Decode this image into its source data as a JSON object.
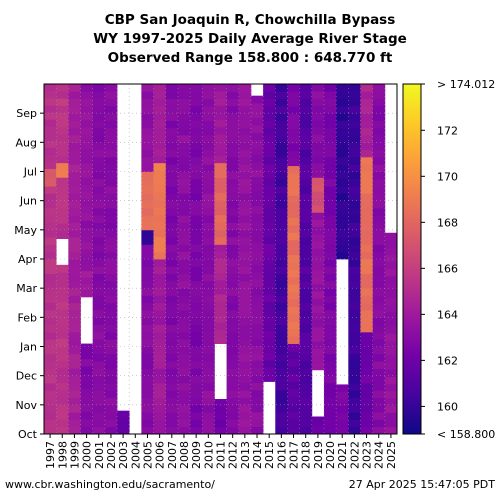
{
  "title_lines": [
    "CBP San Joaquin R, Chowchilla Bypass",
    "WY 1997-2025 Daily Average River Stage",
    "Observed Range 158.800 : 648.770 ft"
  ],
  "footer": {
    "left": "www.cbr.washington.edu/sacramento/",
    "right": "27 Apr 2025 15:47:05 PDT"
  },
  "chart_data": {
    "type": "heatmap",
    "x": [
      "1997",
      "1998",
      "1999",
      "2000",
      "2001",
      "2002",
      "2003",
      "2004",
      "2005",
      "2006",
      "2007",
      "2008",
      "2009",
      "2010",
      "2011",
      "2012",
      "2013",
      "2014",
      "2015",
      "2016",
      "2017",
      "2018",
      "2019",
      "2020",
      "2021",
      "2022",
      "2023",
      "2024",
      "2025"
    ],
    "y": [
      "Oct",
      "Nov",
      "Dec",
      "Jan",
      "Feb",
      "Mar",
      "Apr",
      "May",
      "Jun",
      "Jul",
      "Aug",
      "Sep"
    ],
    "colorbar": {
      "range": [
        158.8,
        174.012
      ],
      "ticks": [
        "160",
        "162",
        "164",
        "166",
        "168",
        "170",
        "172"
      ],
      "tick_values": [
        160,
        162,
        164,
        166,
        168,
        170,
        172
      ],
      "max_label": "> 174.012",
      "min_label": "< 158.800",
      "colors": [
        "#0d0887",
        "#46039f",
        "#7201a8",
        "#9c179e",
        "#bd3786",
        "#d8576b",
        "#ed7953",
        "#fb9f3a",
        "#fdca26",
        "#f0f921"
      ]
    },
    "grid": "dotted",
    "months_from_oct": [
      {
        "year": "1997",
        "base": 165.2,
        "segments": [
          [
            0,
            8.5,
            165.3
          ],
          [
            8.5,
            9.1,
            167.5
          ],
          [
            9.1,
            12,
            165.2
          ]
        ]
      },
      {
        "year": "1998",
        "base": 165.8,
        "segments": [
          [
            0,
            5.8,
            165.4
          ],
          [
            5.8,
            6.7,
            null
          ],
          [
            6.7,
            8.8,
            165.2
          ],
          [
            8.8,
            9.3,
            169.0
          ],
          [
            9.3,
            12,
            165.5
          ]
        ]
      },
      {
        "year": "1999",
        "base": 164.5,
        "segments": [
          [
            0,
            12,
            164.3
          ]
        ]
      },
      {
        "year": "2000",
        "base": 163.5,
        "segments": [
          [
            0,
            3.1,
            162.8
          ],
          [
            3.1,
            4.7,
            null
          ],
          [
            4.7,
            5.6,
            164.2
          ],
          [
            5.6,
            12,
            163.4
          ]
        ]
      },
      {
        "year": "2001",
        "base": 163.0,
        "segments": [
          [
            0,
            12,
            163.0
          ]
        ]
      },
      {
        "year": "2002",
        "base": 163.0,
        "segments": [
          [
            0,
            12,
            163.0
          ]
        ]
      },
      {
        "year": "2003",
        "base": 162.0,
        "segments": [
          [
            0,
            0.8,
            161.8
          ],
          [
            0.8,
            12,
            null
          ]
        ]
      },
      {
        "year": "2004",
        "base": null,
        "segments": [
          [
            0,
            12,
            null
          ]
        ]
      },
      {
        "year": "2005",
        "base": 163.5,
        "segments": [
          [
            0,
            6.5,
            163.0
          ],
          [
            6.5,
            7.0,
            159.5
          ],
          [
            7.0,
            9.0,
            168.5
          ],
          [
            9.0,
            12,
            163.5
          ]
        ]
      },
      {
        "year": "2006",
        "base": 164.5,
        "segments": [
          [
            0,
            6.0,
            164.0
          ],
          [
            6.0,
            9.3,
            169.0
          ],
          [
            9.3,
            12,
            164.5
          ]
        ]
      },
      {
        "year": "2007",
        "base": 163.0,
        "segments": [
          [
            0,
            12,
            162.8
          ]
        ]
      },
      {
        "year": "2008",
        "base": 163.0,
        "segments": [
          [
            0,
            12,
            163.2
          ]
        ]
      },
      {
        "year": "2009",
        "base": 162.5,
        "segments": [
          [
            0,
            12,
            162.6
          ]
        ]
      },
      {
        "year": "2010",
        "base": 163.0,
        "segments": [
          [
            0,
            12,
            163.2
          ]
        ]
      },
      {
        "year": "2011",
        "base": 165.0,
        "segments": [
          [
            0,
            1.2,
            162.0
          ],
          [
            1.2,
            3.1,
            null
          ],
          [
            3.1,
            6.5,
            164.5
          ],
          [
            6.5,
            9.3,
            168.0
          ],
          [
            9.3,
            12,
            164.0
          ]
        ]
      },
      {
        "year": "2012",
        "base": 163.0,
        "segments": [
          [
            0,
            12,
            163.0
          ]
        ]
      },
      {
        "year": "2013",
        "base": 163.5,
        "segments": [
          [
            0,
            12,
            163.5
          ]
        ]
      },
      {
        "year": "2014",
        "base": 163.0,
        "segments": [
          [
            0,
            11.6,
            163.2
          ],
          [
            11.6,
            12,
            null
          ]
        ]
      },
      {
        "year": "2015",
        "base": 161.8,
        "segments": [
          [
            0,
            1.8,
            null
          ],
          [
            1.8,
            12,
            161.8
          ]
        ]
      },
      {
        "year": "2016",
        "base": 160.5,
        "segments": [
          [
            0,
            12,
            160.4
          ]
        ]
      },
      {
        "year": "2017",
        "base": 162.0,
        "segments": [
          [
            0,
            3.1,
            161.5
          ],
          [
            3.1,
            9.2,
            168.5
          ],
          [
            9.2,
            12,
            162.5
          ]
        ]
      },
      {
        "year": "2018",
        "base": 161.0,
        "segments": [
          [
            0,
            12,
            161.0
          ]
        ]
      },
      {
        "year": "2019",
        "base": 163.0,
        "segments": [
          [
            0,
            0.6,
            162.0
          ],
          [
            0.6,
            2.2,
            null
          ],
          [
            2.2,
            7.6,
            163.5
          ],
          [
            7.6,
            8.8,
            167.0
          ],
          [
            8.8,
            12,
            163.0
          ]
        ]
      },
      {
        "year": "2020",
        "base": 162.5,
        "segments": [
          [
            0,
            12,
            162.5
          ]
        ]
      },
      {
        "year": "2021",
        "base": 160.0,
        "segments": [
          [
            0,
            1.7,
            162.5
          ],
          [
            1.7,
            6.0,
            null
          ],
          [
            6.0,
            12,
            159.8
          ]
        ]
      },
      {
        "year": "2022",
        "base": 160.0,
        "segments": [
          [
            0,
            12,
            160.2
          ]
        ]
      },
      {
        "year": "2023",
        "base": 165.0,
        "segments": [
          [
            0,
            3.5,
            162.0
          ],
          [
            3.5,
            9.5,
            168.5
          ],
          [
            9.5,
            12,
            164.5
          ]
        ]
      },
      {
        "year": "2024",
        "base": 163.0,
        "segments": [
          [
            0,
            12,
            163.0
          ]
        ]
      },
      {
        "year": "2025",
        "base": 163.5,
        "segments": [
          [
            0,
            6.9,
            163.5
          ],
          [
            6.9,
            12,
            null
          ]
        ]
      }
    ]
  }
}
